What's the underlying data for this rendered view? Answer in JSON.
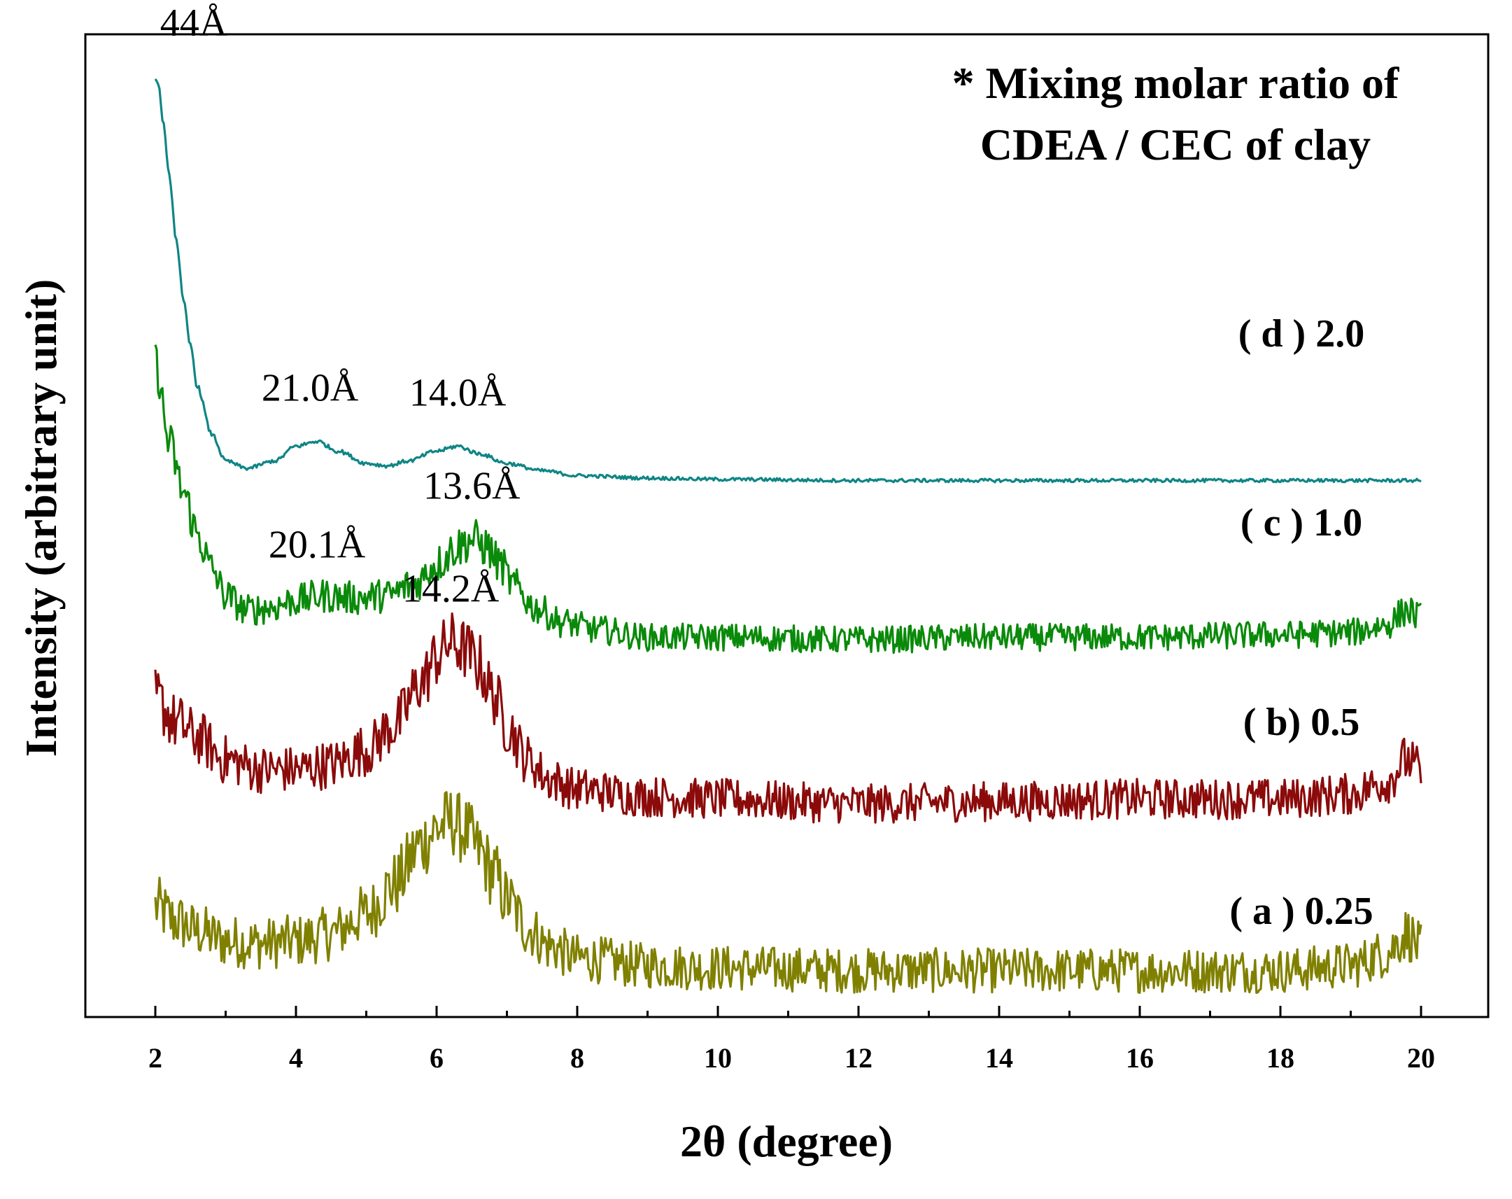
{
  "chart_data": {
    "type": "line",
    "title": "",
    "xlabel": "2θ (degree)",
    "ylabel": "Intensity (arbitrary unit)",
    "xlim": [
      1,
      21
    ],
    "xticks": [
      "2",
      "4",
      "6",
      "8",
      "10",
      "12",
      "14",
      "16",
      "18",
      "20"
    ],
    "yticks": [],
    "note_lines": [
      "* Mixing molar ratio of",
      "CDEA / CEC of clay"
    ],
    "series": [
      {
        "name": "(a) 0.25",
        "label": "( a ) 0.25",
        "color": "#808000",
        "offset": 0,
        "noise": 0.9,
        "x": [
          2.0,
          2.3,
          2.6,
          3.0,
          3.5,
          4.0,
          4.5,
          5.0,
          5.4,
          5.8,
          6.0,
          6.2,
          6.4,
          6.6,
          6.8,
          7.0,
          7.3,
          7.6,
          8.0,
          9.0,
          10.0,
          12.0,
          14.0,
          16.0,
          18.0,
          19.0,
          19.5,
          19.8,
          20.0
        ],
        "values": [
          2.7,
          2.1,
          1.7,
          1.3,
          1.2,
          1.3,
          1.6,
          2.4,
          3.6,
          5.3,
          5.9,
          6.2,
          5.8,
          5.0,
          4.1,
          3.0,
          1.8,
          1.1,
          0.6,
          0.3,
          0.2,
          0.1,
          0.1,
          0.1,
          0.1,
          0.3,
          0.8,
          1.6,
          1.0
        ]
      },
      {
        "name": "(b) 0.5",
        "label": "( b) 0.5",
        "color": "#8b0a0a",
        "offset": 6.9,
        "noise": 0.8,
        "x": [
          2.0,
          2.3,
          2.6,
          3.0,
          3.5,
          4.0,
          4.5,
          5.0,
          5.4,
          5.8,
          6.0,
          6.2,
          6.4,
          6.6,
          6.8,
          7.0,
          7.3,
          7.6,
          8.0,
          9.0,
          10.0,
          12.0,
          14.0,
          16.0,
          18.0,
          19.0,
          19.5,
          19.8,
          20.0
        ],
        "values": [
          4.3,
          3.3,
          2.7,
          1.8,
          1.4,
          1.4,
          1.6,
          2.2,
          3.2,
          5.0,
          6.0,
          6.6,
          6.3,
          5.7,
          4.5,
          3.2,
          1.8,
          1.0,
          0.6,
          0.3,
          0.2,
          0.0,
          0.1,
          0.2,
          0.2,
          0.4,
          0.9,
          1.8,
          1.3
        ]
      },
      {
        "name": "(c) 1.0",
        "label": "( c ) 1.0",
        "color": "#0a8a0a",
        "offset": 13.6,
        "noise": 0.55,
        "x": [
          2.0,
          2.2,
          2.4,
          2.6,
          2.8,
          3.0,
          3.3,
          3.6,
          4.0,
          4.4,
          4.8,
          5.3,
          5.7,
          6.0,
          6.3,
          6.5,
          6.7,
          6.9,
          7.1,
          7.4,
          7.8,
          8.3,
          9.0,
          10.0,
          12.0,
          14.0,
          16.0,
          18.0,
          19.0,
          19.5,
          19.8,
          20.0
        ],
        "values": [
          11.3,
          8.0,
          6.0,
          4.3,
          2.9,
          1.8,
          1.2,
          1.3,
          1.6,
          1.8,
          1.7,
          1.8,
          2.3,
          3.1,
          3.8,
          4.1,
          3.8,
          3.1,
          2.2,
          1.3,
          0.7,
          0.4,
          0.1,
          0.1,
          0.0,
          0.1,
          0.1,
          0.2,
          0.3,
          0.6,
          1.2,
          0.9
        ]
      },
      {
        "name": "(d) 2.0",
        "label": "( d ) 2.0",
        "color": "#0f8585",
        "offset": 20.1,
        "noise": 0.07,
        "x": [
          2.0,
          2.05,
          2.1,
          2.2,
          2.3,
          2.4,
          2.5,
          2.6,
          2.8,
          3.0,
          3.3,
          3.7,
          4.0,
          4.3,
          4.6,
          5.0,
          5.3,
          5.6,
          6.0,
          6.3,
          6.6,
          7.0,
          7.5,
          8.0,
          9.0,
          10.0,
          12.0,
          14.0,
          16.0,
          18.0,
          20.0
        ],
        "values": [
          16.5,
          16.1,
          14.8,
          12.4,
          9.8,
          7.3,
          5.5,
          3.8,
          1.9,
          0.8,
          0.5,
          0.8,
          1.4,
          1.6,
          1.2,
          0.7,
          0.6,
          0.8,
          1.2,
          1.4,
          1.1,
          0.7,
          0.4,
          0.2,
          0.1,
          0.05,
          0.0,
          0.0,
          0.0,
          0.0,
          0.0
        ]
      }
    ],
    "annotations": [
      {
        "text": "44Å",
        "x": 2.0,
        "series": 3,
        "anchor_y": 16.5
      },
      {
        "text": "21.0Å",
        "x": 4.2,
        "series": 3,
        "anchor_y": 1.6
      },
      {
        "text": "14.0Å",
        "x": 6.3,
        "series": 3,
        "anchor_y": 1.4
      },
      {
        "text": "20.1Å",
        "x": 4.3,
        "series": 2,
        "anchor_y": 1.7
      },
      {
        "text": "13.6Å",
        "x": 6.5,
        "series": 2,
        "anchor_y": 4.1
      },
      {
        "text": "14.2Å",
        "x": 6.2,
        "series": 1,
        "anchor_y": 6.6
      }
    ]
  }
}
